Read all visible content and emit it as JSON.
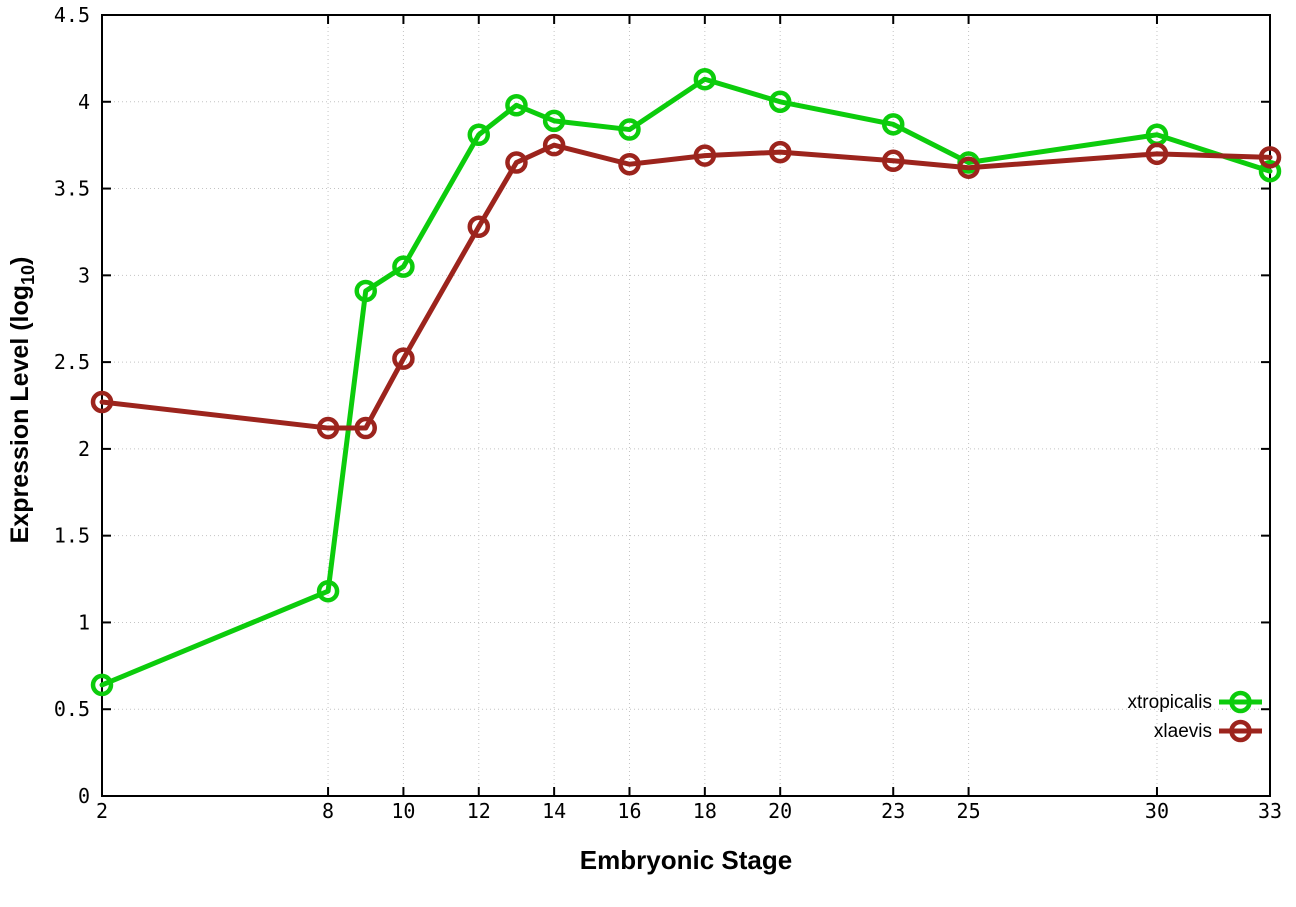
{
  "chart_data": {
    "type": "line",
    "xlabel": "Embryonic Stage",
    "ylabel": "Expression Level (log10)",
    "ylabel_parts": {
      "main": "Expression Level (log",
      "sub": "10",
      "end": ")"
    },
    "x": [
      2,
      8,
      9,
      10,
      12,
      13,
      14,
      16,
      18,
      20,
      23,
      25,
      30,
      33
    ],
    "series": [
      {
        "name": "xtropicalis",
        "color": "#0ccc0c",
        "values": [
          0.64,
          1.18,
          2.91,
          3.05,
          3.81,
          3.98,
          3.89,
          3.84,
          4.13,
          4.0,
          3.87,
          3.65,
          3.81,
          3.6
        ]
      },
      {
        "name": "xlaevis",
        "color": "#9c241d",
        "values": [
          2.27,
          2.12,
          2.12,
          2.52,
          3.28,
          3.65,
          3.75,
          3.64,
          3.69,
          3.71,
          3.66,
          3.62,
          3.7,
          3.68
        ]
      }
    ],
    "x_ticks": [
      2,
      8,
      10,
      12,
      14,
      16,
      18,
      20,
      23,
      25,
      30,
      33
    ],
    "y_ticks": [
      0,
      0.5,
      1,
      1.5,
      2,
      2.5,
      3,
      3.5,
      4,
      4.5
    ],
    "xlim": [
      2,
      33
    ],
    "ylim": [
      0,
      4.5
    ],
    "grid": true,
    "grid_style": "dotted",
    "grid_color": "#c4c4c4",
    "axis_color": "#000000",
    "legend_position": "bottom-right-inside",
    "legend": [
      "xtropicalis",
      "xlaevis"
    ]
  }
}
